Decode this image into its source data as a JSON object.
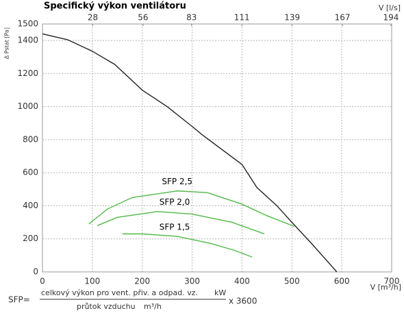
{
  "chart_data": {
    "type": "line",
    "title": "Specifický výkon ventilátoru",
    "y_label": "Δ Pstat [Pa]",
    "x_label": "V [m³/h]",
    "x2_label": "V [l/s]",
    "xlim": [
      0,
      700
    ],
    "xticks": [
      0,
      100,
      200,
      300,
      400,
      500,
      600,
      700
    ],
    "x2lim": [
      0,
      194.4
    ],
    "x2ticks": [
      28,
      56,
      83,
      111,
      139,
      167,
      194
    ],
    "ylim": [
      0,
      1500
    ],
    "yticks": [
      0,
      200,
      400,
      600,
      800,
      1000,
      1200,
      1400,
      1500
    ],
    "grid": true,
    "series": [
      {
        "color": "#222222",
        "x": [
          0,
          50,
          100,
          145,
          200,
          250,
          300,
          320,
          400,
          430,
          470,
          500,
          540,
          590
        ],
        "values": [
          1440,
          1405,
          1335,
          1255,
          1100,
          1000,
          880,
          830,
          650,
          510,
          400,
          300,
          170,
          0
        ]
      },
      {
        "name": "SFP 2,5",
        "color": "#4fb848",
        "x": [
          93,
          130,
          180,
          270,
          330,
          400,
          450,
          505
        ],
        "values": [
          290,
          380,
          450,
          490,
          480,
          410,
          340,
          275
        ]
      },
      {
        "name": "SFP 2,0",
        "color": "#4fb848",
        "x": [
          110,
          150,
          230,
          300,
          380,
          445
        ],
        "values": [
          280,
          330,
          365,
          350,
          300,
          230
        ]
      },
      {
        "name": "SFP 1,5",
        "color": "#4fb848",
        "x": [
          160,
          200,
          270,
          340,
          385,
          420
        ],
        "values": [
          230,
          230,
          215,
          170,
          130,
          90
        ]
      }
    ]
  },
  "formula": {
    "lhs": "SFP=",
    "numerator": "celkový výkon pro vent. přiv. a odpad. vz.",
    "numerator_unit": "kW",
    "denominator": "průtok vzduchu",
    "denominator_unit": "m³/h",
    "factor": "x 3600"
  }
}
